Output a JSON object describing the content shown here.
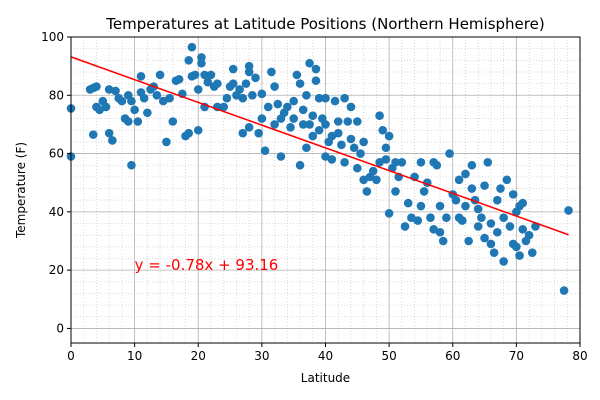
{
  "chart_data": {
    "type": "scatter",
    "title": "Temperatures at Latitude Positions (Northern Hemisphere)",
    "xlabel": "Latitude",
    "ylabel": "Temperature (F)",
    "xlim": [
      0,
      80
    ],
    "ylim": [
      -5,
      100
    ],
    "xticks": [
      0,
      10,
      20,
      30,
      40,
      50,
      60,
      70,
      80
    ],
    "yticks": [
      0,
      20,
      40,
      60,
      80,
      100
    ],
    "grid": "major and minor dotted",
    "colors": {
      "points": "#1f77b4",
      "regression": "#ff0000",
      "grid_major": "#b0b0b0",
      "grid_minor": "#d0d0d0"
    },
    "regression": {
      "slope": -0.78,
      "intercept": 93.16,
      "x_start": 0,
      "x_end": 78.2,
      "label": "y = -0.78x + 93.16",
      "label_x": 10,
      "label_y": 20
    },
    "points": [
      [
        0.0,
        75.5
      ],
      [
        0.0,
        59.0
      ],
      [
        3.0,
        82.0
      ],
      [
        3.5,
        82.5
      ],
      [
        4.0,
        83.0
      ],
      [
        3.5,
        66.5
      ],
      [
        4.0,
        76.0
      ],
      [
        4.5,
        75.0
      ],
      [
        5.0,
        78.0
      ],
      [
        5.5,
        76.0
      ],
      [
        6.0,
        82.0
      ],
      [
        6.0,
        67.0
      ],
      [
        6.5,
        64.5
      ],
      [
        7.0,
        81.5
      ],
      [
        7.5,
        79.0
      ],
      [
        8.0,
        78.0
      ],
      [
        8.5,
        72.0
      ],
      [
        9.0,
        71.0
      ],
      [
        9.0,
        80.0
      ],
      [
        9.5,
        78.0
      ],
      [
        9.5,
        56.0
      ],
      [
        10.0,
        75.0
      ],
      [
        10.5,
        71.0
      ],
      [
        11.0,
        81.0
      ],
      [
        11.0,
        86.5
      ],
      [
        11.5,
        79.0
      ],
      [
        12.0,
        74.0
      ],
      [
        12.5,
        82.0
      ],
      [
        13.0,
        83.0
      ],
      [
        13.5,
        80.0
      ],
      [
        14.0,
        87.0
      ],
      [
        14.5,
        78.0
      ],
      [
        15.0,
        64.0
      ],
      [
        15.5,
        79.0
      ],
      [
        16.0,
        71.0
      ],
      [
        16.5,
        85.0
      ],
      [
        17.0,
        85.5
      ],
      [
        17.5,
        80.5
      ],
      [
        18.0,
        66.0
      ],
      [
        18.5,
        67.0
      ],
      [
        18.5,
        92.0
      ],
      [
        19.0,
        86.5
      ],
      [
        19.0,
        96.5
      ],
      [
        19.5,
        87.0
      ],
      [
        20.0,
        68.0
      ],
      [
        20.0,
        82.0
      ],
      [
        20.5,
        91.0
      ],
      [
        20.5,
        93.0
      ],
      [
        21.0,
        87.0
      ],
      [
        21.0,
        76.0
      ],
      [
        21.5,
        84.5
      ],
      [
        22.0,
        87.0
      ],
      [
        22.5,
        83.0
      ],
      [
        23.0,
        76.0
      ],
      [
        23.0,
        84.0
      ],
      [
        24.0,
        76.0
      ],
      [
        24.5,
        79.0
      ],
      [
        25.0,
        83.0
      ],
      [
        25.5,
        84.0
      ],
      [
        25.5,
        89.0
      ],
      [
        26.0,
        80.0
      ],
      [
        26.5,
        82.0
      ],
      [
        27.0,
        67.0
      ],
      [
        27.0,
        79.0
      ],
      [
        27.5,
        84.0
      ],
      [
        28.0,
        90.0
      ],
      [
        28.0,
        88.0
      ],
      [
        28.0,
        69.0
      ],
      [
        28.5,
        80.0
      ],
      [
        29.0,
        86.0
      ],
      [
        29.5,
        67.0
      ],
      [
        30.0,
        80.5
      ],
      [
        30.0,
        72.0
      ],
      [
        30.5,
        61.0
      ],
      [
        31.0,
        76.0
      ],
      [
        31.5,
        88.0
      ],
      [
        32.0,
        83.0
      ],
      [
        32.0,
        70.0
      ],
      [
        32.5,
        77.0
      ],
      [
        33.0,
        59.0
      ],
      [
        33.0,
        72.0
      ],
      [
        33.5,
        74.0
      ],
      [
        34.0,
        76.0
      ],
      [
        34.5,
        69.0
      ],
      [
        35.0,
        78.0
      ],
      [
        35.0,
        72.0
      ],
      [
        35.5,
        87.0
      ],
      [
        36.0,
        84.0
      ],
      [
        36.0,
        56.0
      ],
      [
        36.5,
        75.0
      ],
      [
        36.5,
        70.0
      ],
      [
        37.0,
        62.0
      ],
      [
        37.0,
        80.0
      ],
      [
        37.5,
        91.0
      ],
      [
        37.5,
        70.0
      ],
      [
        38.0,
        73.0
      ],
      [
        38.0,
        66.0
      ],
      [
        38.5,
        85.0
      ],
      [
        38.5,
        89.0
      ],
      [
        39.0,
        79.0
      ],
      [
        39.0,
        68.0
      ],
      [
        39.5,
        72.0
      ],
      [
        40.0,
        79.0
      ],
      [
        40.0,
        70.0
      ],
      [
        40.0,
        59.0
      ],
      [
        40.5,
        64.0
      ],
      [
        41.0,
        58.0
      ],
      [
        41.0,
        66.0
      ],
      [
        41.5,
        78.0
      ],
      [
        42.0,
        71.0
      ],
      [
        42.0,
        67.0
      ],
      [
        42.5,
        63.0
      ],
      [
        43.0,
        57.0
      ],
      [
        43.0,
        79.0
      ],
      [
        43.5,
        71.0
      ],
      [
        44.0,
        76.0
      ],
      [
        44.0,
        65.0
      ],
      [
        44.5,
        62.0
      ],
      [
        45.0,
        55.0
      ],
      [
        45.0,
        71.0
      ],
      [
        45.5,
        60.0
      ],
      [
        46.0,
        64.0
      ],
      [
        46.0,
        51.0
      ],
      [
        46.5,
        47.0
      ],
      [
        47.0,
        52.0
      ],
      [
        47.5,
        54.0
      ],
      [
        48.0,
        51.0
      ],
      [
        48.5,
        73.0
      ],
      [
        48.5,
        57.0
      ],
      [
        49.0,
        68.0
      ],
      [
        49.5,
        62.0
      ],
      [
        49.5,
        58.0
      ],
      [
        50.0,
        39.5
      ],
      [
        50.0,
        66.0
      ],
      [
        50.5,
        55.0
      ],
      [
        51.0,
        47.0
      ],
      [
        51.0,
        57.0
      ],
      [
        51.5,
        52.0
      ],
      [
        52.0,
        57.0
      ],
      [
        52.5,
        35.0
      ],
      [
        53.0,
        43.0
      ],
      [
        53.5,
        38.0
      ],
      [
        54.0,
        52.0
      ],
      [
        54.5,
        37.0
      ],
      [
        55.0,
        57.0
      ],
      [
        55.0,
        42.0
      ],
      [
        55.5,
        47.0
      ],
      [
        56.0,
        50.0
      ],
      [
        56.5,
        38.0
      ],
      [
        57.0,
        34.0
      ],
      [
        57.0,
        57.0
      ],
      [
        57.5,
        56.0
      ],
      [
        58.0,
        42.0
      ],
      [
        58.0,
        33.0
      ],
      [
        58.5,
        30.0
      ],
      [
        59.0,
        38.0
      ],
      [
        59.5,
        60.0
      ],
      [
        60.0,
        46.0
      ],
      [
        60.5,
        44.0
      ],
      [
        61.0,
        51.0
      ],
      [
        61.0,
        38.0
      ],
      [
        61.5,
        37.0
      ],
      [
        62.0,
        53.0
      ],
      [
        62.0,
        42.0
      ],
      [
        62.5,
        30.0
      ],
      [
        63.0,
        56.0
      ],
      [
        63.0,
        48.0
      ],
      [
        63.5,
        44.0
      ],
      [
        64.0,
        41.0
      ],
      [
        64.0,
        35.0
      ],
      [
        64.5,
        38.0
      ],
      [
        65.0,
        49.0
      ],
      [
        65.0,
        31.0
      ],
      [
        65.5,
        57.0
      ],
      [
        66.0,
        36.0
      ],
      [
        66.0,
        29.0
      ],
      [
        66.5,
        26.0
      ],
      [
        67.0,
        44.0
      ],
      [
        67.0,
        33.0
      ],
      [
        67.5,
        48.0
      ],
      [
        68.0,
        38.0
      ],
      [
        68.0,
        23.0
      ],
      [
        68.5,
        51.0
      ],
      [
        69.0,
        35.0
      ],
      [
        69.5,
        46.0
      ],
      [
        69.5,
        29.0
      ],
      [
        70.0,
        28.0
      ],
      [
        70.0,
        40.0
      ],
      [
        70.5,
        42.0
      ],
      [
        70.5,
        25.0
      ],
      [
        71.0,
        43.0
      ],
      [
        71.0,
        34.0
      ],
      [
        71.5,
        30.0
      ],
      [
        72.0,
        32.0
      ],
      [
        72.5,
        26.0
      ],
      [
        73.0,
        35.0
      ],
      [
        77.5,
        13.0
      ],
      [
        78.2,
        40.5
      ]
    ]
  }
}
